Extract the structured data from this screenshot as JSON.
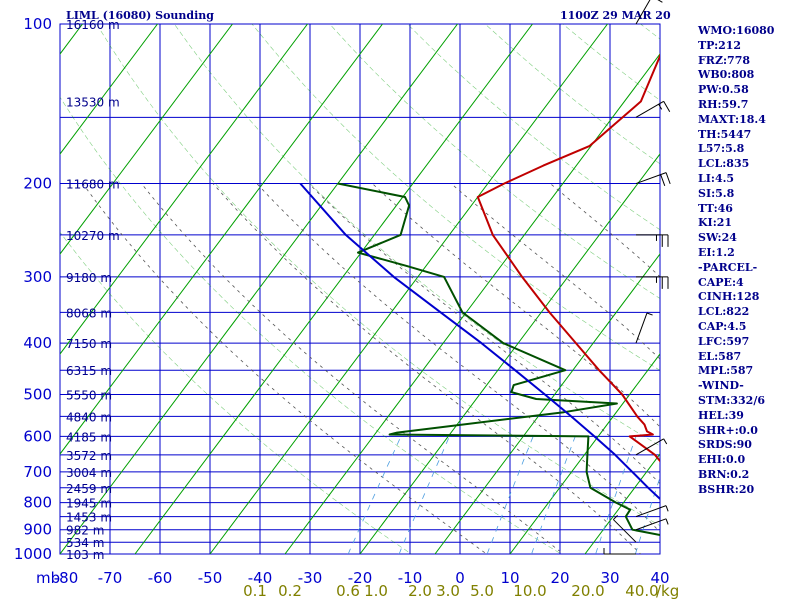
{
  "header": {
    "station": "LIML (16080) Sounding",
    "time": "1100Z 29 MAR 20"
  },
  "indices": [
    "WMO:16080",
    "TP:212",
    "FRZ:778",
    "WB0:808",
    "PW:0.58",
    "RH:59.7",
    "MAXT:18.4",
    "TH:5447",
    "L57:5.8",
    "LCL:835",
    "LI:4.5",
    "SI:5.8",
    "TT:46",
    "KI:21",
    "SW:24",
    "EI:1.2",
    "-PARCEL-",
    "CAPE:4",
    "CINH:128",
    "LCL:822",
    "CAP:4.5",
    "LFC:597",
    "EL:587",
    "MPL:587",
    "-WIND-",
    "STM:332/6",
    "HEL:39",
    "SHR+:0.0",
    "SRDS:90",
    "EHI:0.0",
    "BRN:0.2",
    "BSHR:20"
  ],
  "colors": {
    "grid": "#0000cd",
    "dry_adiabat": "#00a000",
    "moist_adiabat": "#555555",
    "mixing_ratio": "#4f9fe0",
    "temperature": "#c00000",
    "dewpoint": "#005000",
    "parcel": "#0000cd",
    "wind_barb": "#000000",
    "text": "#00008b",
    "mixing_label": "#808000"
  },
  "chart_data": {
    "type": "line",
    "title": "LIML (16080) Sounding",
    "subtitle": "1100Z 29 MAR 20",
    "x_unit": "°C",
    "y_unit": "mb",
    "y_scale": "log",
    "xlim": [
      -80,
      0
    ],
    "ylim": [
      1000,
      100
    ],
    "grid": true,
    "pressure_levels": [
      100,
      200,
      300,
      400,
      500,
      600,
      700,
      800,
      900,
      1000
    ],
    "pressure_labels": [
      "100",
      "200",
      "300",
      "400",
      "500",
      "600",
      "700",
      "800",
      "900",
      "1000"
    ],
    "temperature_ticks": [
      -80,
      -70,
      -60,
      -50,
      -40,
      -30,
      -20,
      -10,
      0,
      10,
      20,
      30,
      40
    ],
    "temperature_tick_labels": [
      "-80",
      "-70",
      "-60",
      "-50",
      "-40",
      "-30",
      "-20",
      "-10",
      "0",
      "10",
      "20",
      "30",
      "40"
    ],
    "pressure_axis_unit_label": "mb",
    "height_labels": [
      {
        "p": 100,
        "text": "16160 m"
      },
      {
        "p": 140,
        "text": "13530 m"
      },
      {
        "p": 200,
        "text": "11680 m"
      },
      {
        "p": 250,
        "text": "10270 m"
      },
      {
        "p": 300,
        "text": "9180 m"
      },
      {
        "p": 350,
        "text": "8068 m"
      },
      {
        "p": 400,
        "text": "7150 m"
      },
      {
        "p": 450,
        "text": "6315 m"
      },
      {
        "p": 500,
        "text": "5550 m"
      },
      {
        "p": 550,
        "text": "4840 m"
      },
      {
        "p": 600,
        "text": "4185 m"
      },
      {
        "p": 650,
        "text": "3572 m"
      },
      {
        "p": 700,
        "text": "3004 m"
      },
      {
        "p": 750,
        "text": "2459 m"
      },
      {
        "p": 800,
        "text": "1945 m"
      },
      {
        "p": 850,
        "text": "1453 m"
      },
      {
        "p": 900,
        "text": "982 m"
      },
      {
        "p": 950,
        "text": "534 m"
      },
      {
        "p": 1000,
        "text": "103 m"
      }
    ],
    "mixing_ratio_labels": [
      "0.1",
      "0.2",
      "0.6",
      "1.0",
      "2.0",
      "3.0",
      "5.0",
      "10.0",
      "20.0",
      "40.0"
    ],
    "mixing_ratio_unit": "g/kg",
    "series": [
      {
        "kind": "temperature",
        "points": [
          [
            1009,
            16.0
          ],
          [
            996,
            14.5
          ],
          [
            970,
            12.0
          ],
          [
            925,
            8.5
          ],
          [
            900,
            6.5
          ],
          [
            850,
            3.5
          ],
          [
            800,
            -0.5
          ],
          [
            750,
            -3.6
          ],
          [
            700,
            -7.0
          ],
          [
            650,
            -10.6
          ],
          [
            600,
            -15.8
          ],
          [
            595,
            -12.9
          ],
          [
            587,
            -14.0
          ],
          [
            570,
            -15.0
          ],
          [
            550,
            -16.8
          ],
          [
            500,
            -21.0
          ],
          [
            450,
            -26.5
          ],
          [
            400,
            -32.3
          ],
          [
            350,
            -38.9
          ],
          [
            300,
            -46.1
          ],
          [
            250,
            -54.2
          ],
          [
            212,
            -60.0
          ],
          [
            200,
            -57.8
          ],
          [
            185,
            -54.4
          ],
          [
            170,
            -50.2
          ],
          [
            140,
            -47.8
          ],
          [
            100,
            -51.2
          ]
        ]
      },
      {
        "kind": "dewpoint",
        "points": [
          [
            1009,
            6.0
          ],
          [
            996,
            5.5
          ],
          [
            960,
            2.0
          ],
          [
            925,
            -1.0
          ],
          [
            900,
            -6.1
          ],
          [
            850,
            -8.3
          ],
          [
            825,
            -8.4
          ],
          [
            800,
            -11.0
          ],
          [
            750,
            -15.9
          ],
          [
            700,
            -18.0
          ],
          [
            650,
            -19.6
          ],
          [
            600,
            -21.3
          ],
          [
            595,
            -48.0
          ],
          [
            590,
            -47.2
          ],
          [
            540,
            -27.0
          ],
          [
            520,
            -20.8
          ],
          [
            510,
            -32.0
          ],
          [
            495,
            -36.0
          ],
          [
            480,
            -36.4
          ],
          [
            450,
            -31.0
          ],
          [
            400,
            -42.0
          ],
          [
            350,
            -50.5
          ],
          [
            300,
            -56.5
          ],
          [
            286,
            -62.6
          ],
          [
            270,
            -70.4
          ],
          [
            250,
            -66.5
          ],
          [
            220,
            -68.3
          ],
          [
            212,
            -69.7
          ],
          [
            200,
            -80.0
          ]
        ]
      },
      {
        "kind": "parcel",
        "points": [
          [
            1009,
            14.0
          ],
          [
            950,
            8.8
          ],
          [
            900,
            4.1
          ],
          [
            850,
            -0.5
          ],
          [
            822,
            -3.1
          ],
          [
            800,
            -4.6
          ],
          [
            750,
            -8.2
          ],
          [
            700,
            -11.9
          ],
          [
            650,
            -15.9
          ],
          [
            600,
            -20.5
          ],
          [
            550,
            -25.6
          ],
          [
            500,
            -31.3
          ],
          [
            450,
            -37.7
          ],
          [
            400,
            -44.9
          ],
          [
            350,
            -53.4
          ],
          [
            300,
            -63.2
          ],
          [
            250,
            -73.8
          ],
          [
            200,
            -85.0
          ]
        ]
      }
    ],
    "wind_barbs": [
      {
        "p": 1000,
        "dir": 90,
        "speed": 5
      },
      {
        "p": 950,
        "dir": 45,
        "speed": 5
      },
      {
        "p": 900,
        "dir": 290,
        "speed": 5
      },
      {
        "p": 850,
        "dir": 290,
        "speed": 5
      },
      {
        "p": 650,
        "dir": 300,
        "speed": 5
      },
      {
        "p": 400,
        "dir": 340,
        "speed": 5
      },
      {
        "p": 300,
        "dir": 270,
        "speed": 25
      },
      {
        "p": 250,
        "dir": 270,
        "speed": 25
      },
      {
        "p": 200,
        "dir": 290,
        "speed": 20
      },
      {
        "p": 150,
        "dir": 300,
        "speed": 15
      },
      {
        "p": 100,
        "dir": 330,
        "speed": 10
      }
    ]
  }
}
